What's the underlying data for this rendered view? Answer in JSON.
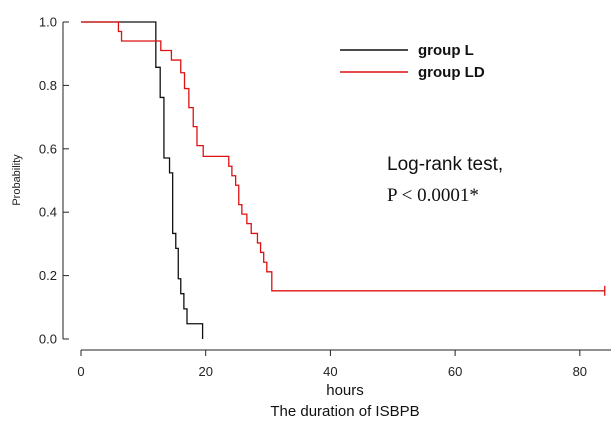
{
  "chart_data": {
    "type": "line",
    "subtype": "kaplan-meier step",
    "xlabel": "hours",
    "xsublabel": "The duration of ISBPB",
    "ylabel": "Probability",
    "xlim": [
      0,
      85
    ],
    "ylim": [
      0,
      1
    ],
    "xticks": [
      0,
      20,
      40,
      60,
      80
    ],
    "yticks": [
      0.0,
      0.2,
      0.4,
      0.6,
      0.8,
      1.0
    ],
    "ytick_labels": [
      "0.0",
      "0.2",
      "0.4",
      "0.6",
      "0.8",
      "1.0"
    ],
    "grid": false,
    "legend_position": "top-right",
    "annotation": [
      "Log-rank test,",
      "P < 0.0001*"
    ],
    "series": [
      {
        "name": "group L",
        "color": "#111111",
        "steps": [
          [
            0,
            1.0
          ],
          [
            12.0,
            0.857
          ],
          [
            12.7,
            0.762
          ],
          [
            13.3,
            0.571
          ],
          [
            14.2,
            0.524
          ],
          [
            14.7,
            0.333
          ],
          [
            15.2,
            0.286
          ],
          [
            15.6,
            0.19
          ],
          [
            16.0,
            0.143
          ],
          [
            16.5,
            0.095
          ],
          [
            17.0,
            0.048
          ],
          [
            19.5,
            0.0
          ]
        ],
        "censored": []
      },
      {
        "name": "group LD",
        "color": "#dd1111",
        "steps": [
          [
            0,
            1.0
          ],
          [
            6.0,
            0.97
          ],
          [
            6.5,
            0.94
          ],
          [
            12.8,
            0.91
          ],
          [
            14.5,
            0.88
          ],
          [
            16.0,
            0.84
          ],
          [
            16.6,
            0.79
          ],
          [
            17.3,
            0.73
          ],
          [
            18.0,
            0.67
          ],
          [
            18.6,
            0.61
          ],
          [
            19.6,
            0.576
          ],
          [
            23.7,
            0.545
          ],
          [
            24.2,
            0.515
          ],
          [
            24.8,
            0.485
          ],
          [
            25.3,
            0.424
          ],
          [
            25.8,
            0.394
          ],
          [
            26.6,
            0.364
          ],
          [
            27.3,
            0.333
          ],
          [
            28.3,
            0.303
          ],
          [
            28.8,
            0.273
          ],
          [
            29.3,
            0.242
          ],
          [
            29.8,
            0.212
          ],
          [
            30.6,
            0.152
          ]
        ],
        "end_x": 84,
        "censored": [
          [
            84,
            0.152
          ]
        ]
      }
    ]
  }
}
